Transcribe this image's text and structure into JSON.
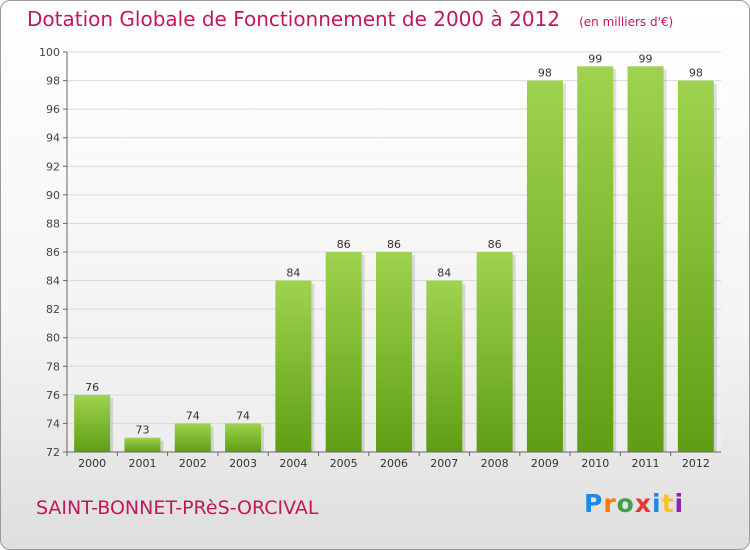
{
  "header": {
    "title": "Dotation Globale de Fonctionnement de 2000 à 2012",
    "subtitle": "(en milliers d'€)"
  },
  "footer": {
    "commune": "SAINT-BONNET-PRèS-ORCIVAL",
    "logo_text": "Proxiti",
    "logo_letters": [
      {
        "ch": "P",
        "color": "#1e88e5"
      },
      {
        "ch": "r",
        "color": "#f57c00"
      },
      {
        "ch": "o",
        "color": "#43a047"
      },
      {
        "ch": "x",
        "color": "#e53935"
      },
      {
        "ch": "i",
        "color": "#1e88e5"
      },
      {
        "ch": "t",
        "color": "#fbc02d"
      },
      {
        "ch": "i",
        "color": "#8e24aa"
      }
    ]
  },
  "colors": {
    "title": "#c2185b",
    "bar_top": "#9fd34f",
    "bar_bottom": "#5f9e14",
    "grid": "#d9d9d9",
    "axis": "#666666"
  },
  "chart_data": {
    "type": "bar",
    "categories": [
      "2000",
      "2001",
      "2002",
      "2003",
      "2004",
      "2005",
      "2006",
      "2007",
      "2008",
      "2009",
      "2010",
      "2011",
      "2012"
    ],
    "values": [
      76,
      73,
      74,
      74,
      84,
      86,
      86,
      84,
      86,
      98,
      99,
      99,
      98
    ],
    "data_labels": [
      "76",
      "73",
      "74",
      "74",
      "84",
      "86",
      "86",
      "84",
      "86",
      "98",
      "99",
      "99",
      "98"
    ],
    "y_ticks": [
      "72",
      "74",
      "76",
      "78",
      "80",
      "82",
      "84",
      "86",
      "88",
      "90",
      "92",
      "94",
      "96",
      "98",
      "100"
    ],
    "ylim": [
      72,
      100
    ],
    "grid": true,
    "legend": "none"
  }
}
